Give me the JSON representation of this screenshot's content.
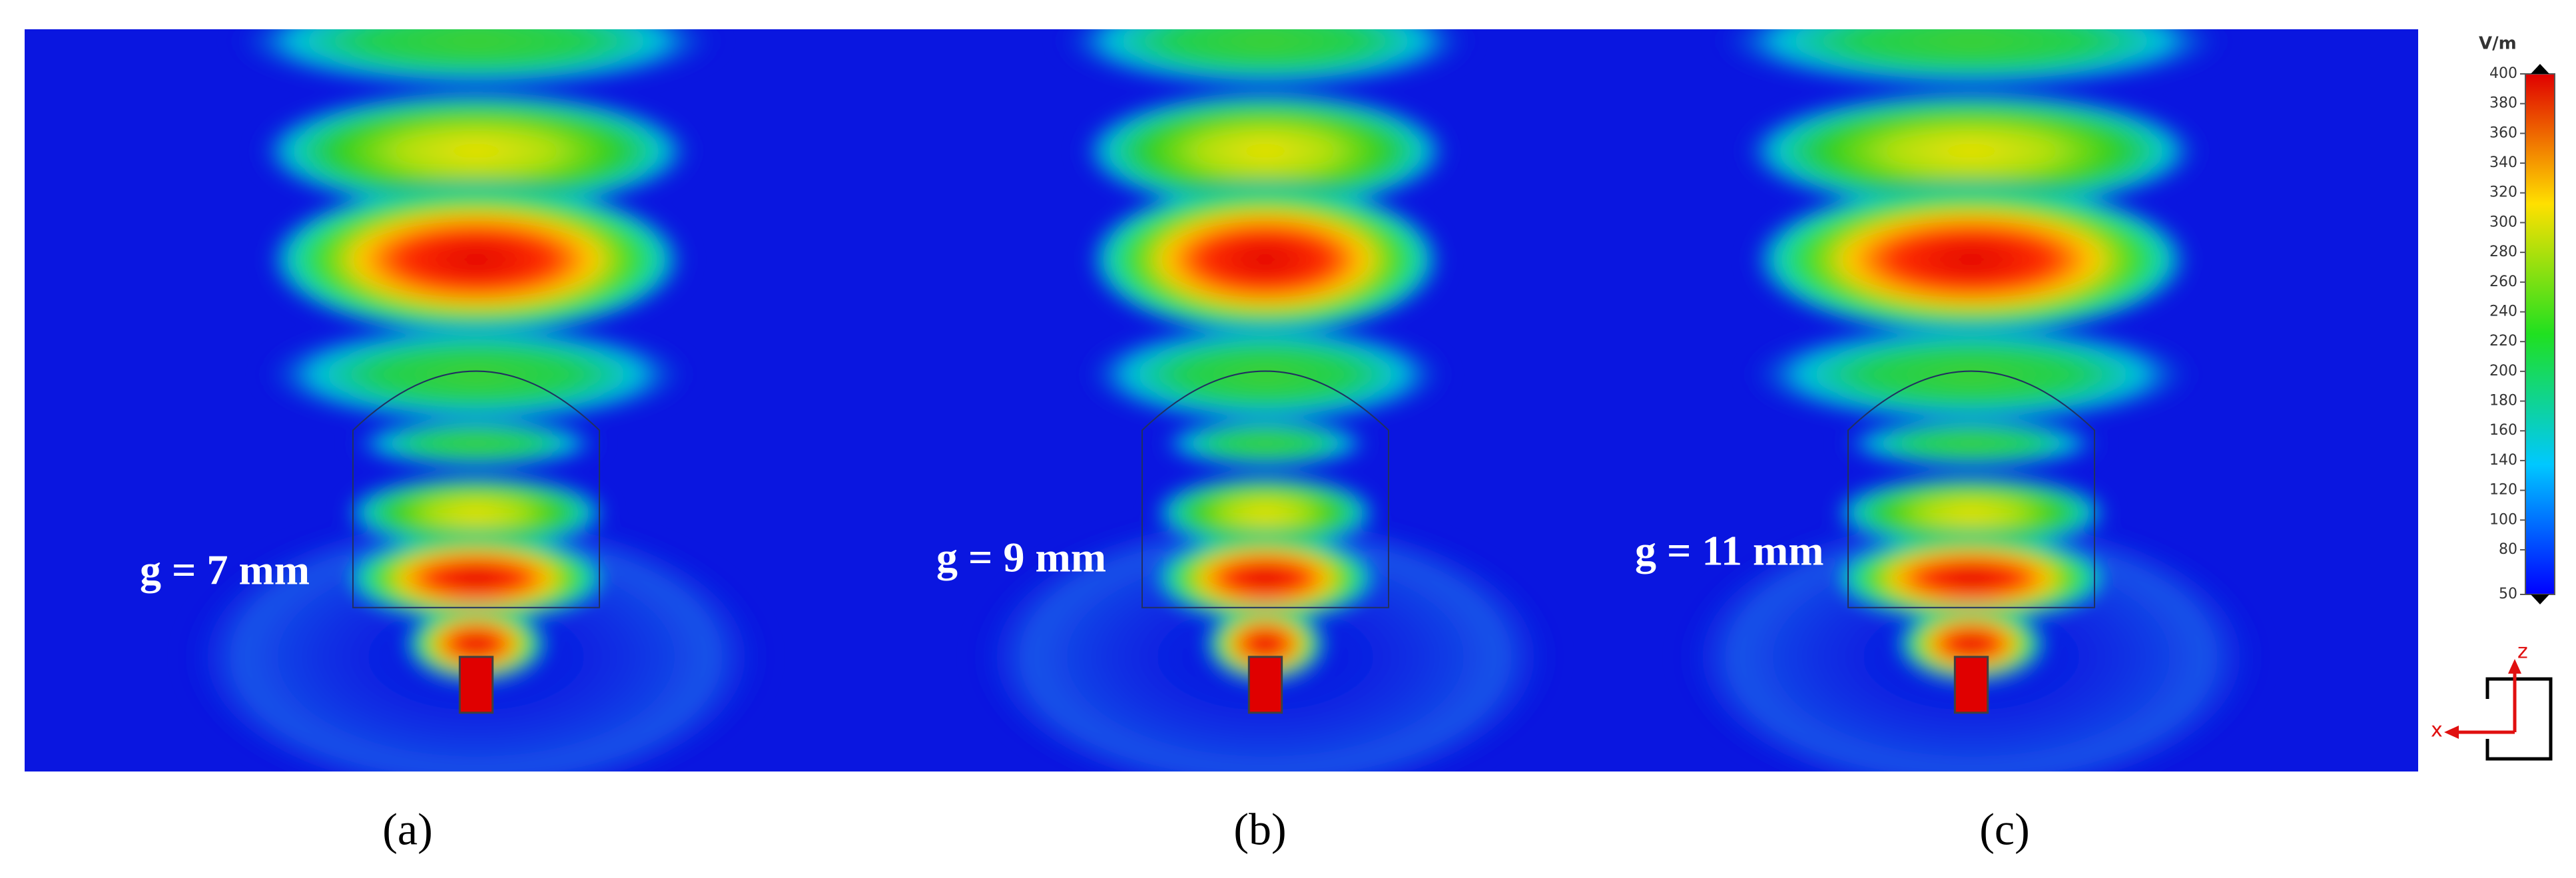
{
  "panels": [
    {
      "label": "g = 7 mm",
      "caption": "(a)"
    },
    {
      "label": "g = 9 mm",
      "caption": "(b)"
    },
    {
      "label": "g = 11 mm",
      "caption": "(c)"
    }
  ],
  "colorbar": {
    "unit": "V/m",
    "range": [
      50,
      400
    ],
    "ticks": [
      50,
      80,
      100,
      120,
      140,
      160,
      180,
      200,
      220,
      240,
      260,
      280,
      300,
      320,
      340,
      360,
      380,
      400
    ]
  },
  "axes_icon": {
    "z": "z",
    "x": "x"
  }
}
